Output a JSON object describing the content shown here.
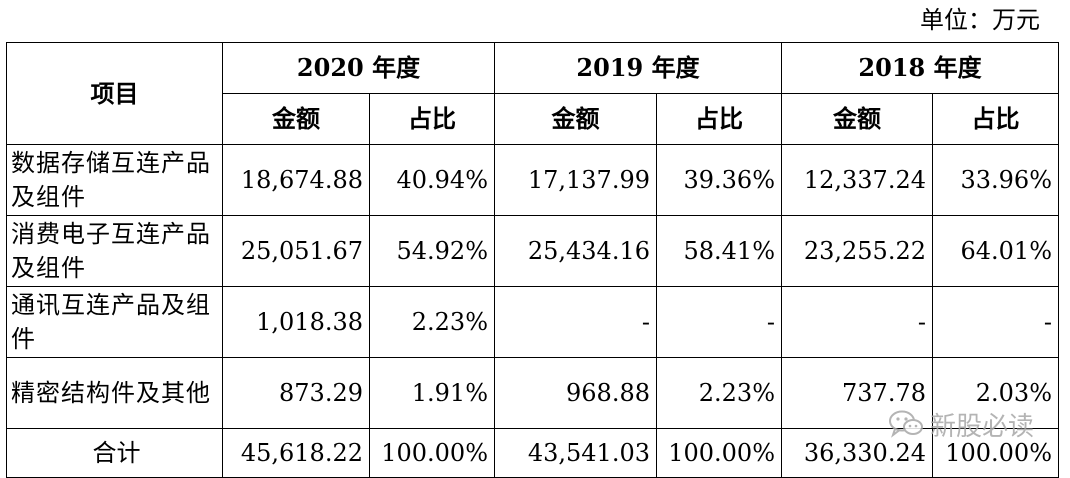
{
  "unit_label": "单位：万元",
  "table": {
    "item_header": "项目",
    "years": [
      "2020 年度",
      "2019 年度",
      "2018 年度"
    ],
    "sub_headers": {
      "amount": "金额",
      "ratio": "占比"
    },
    "rows": [
      {
        "item": "数据存储互连产品及组件",
        "cells": [
          "18,674.88",
          "40.94%",
          "17,137.99",
          "39.36%",
          "12,337.24",
          "33.96%"
        ]
      },
      {
        "item": "消费电子互连产品及组件",
        "cells": [
          "25,051.67",
          "54.92%",
          "25,434.16",
          "58.41%",
          "23,255.22",
          "64.01%"
        ]
      },
      {
        "item": "通讯互连产品及组件",
        "cells": [
          "1,018.38",
          "2.23%",
          "-",
          "-",
          "-",
          "-"
        ]
      },
      {
        "item": "精密结构件及其他",
        "cells": [
          "873.29",
          "1.91%",
          "968.88",
          "2.23%",
          "737.78",
          "2.03%"
        ]
      },
      {
        "item": "合计",
        "cells": [
          "45,618.22",
          "100.00%",
          "43,541.03",
          "100.00%",
          "36,330.24",
          "100.00%"
        ]
      }
    ]
  },
  "watermark": {
    "text": "新股必读",
    "icon": "wechat-logo-icon"
  }
}
